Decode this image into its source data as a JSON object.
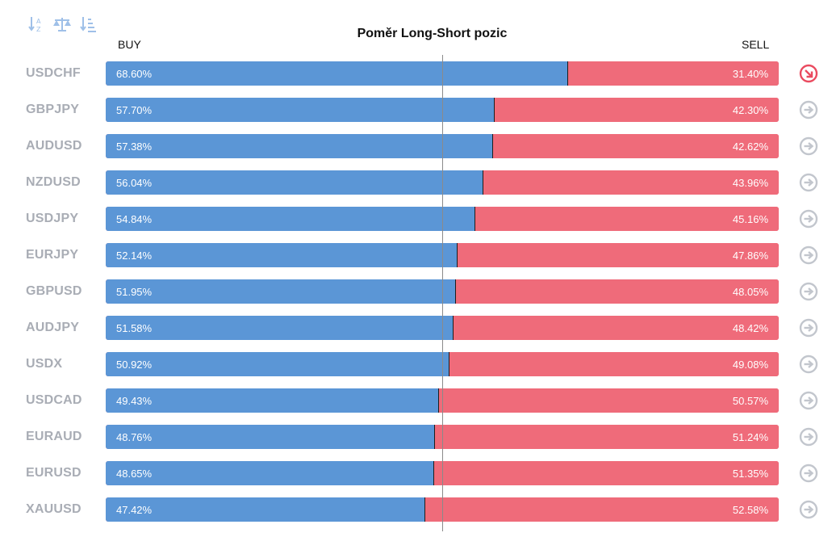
{
  "chart_data": {
    "type": "bar",
    "title": "Poměr Long-Short pozic",
    "left_label": "BUY",
    "right_label": "SELL",
    "colors": {
      "buy": "#5b96d6",
      "sell": "#ef6b7a",
      "pair": "#a9adb5",
      "active_arrow": "#ea4b60",
      "arrow": "#c2c6cd"
    },
    "rows": [
      {
        "pair": "USDCHF",
        "buy": 68.6,
        "sell": 31.4,
        "buy_text": "68.60%",
        "sell_text": "31.40%",
        "arrow": "active"
      },
      {
        "pair": "GBPJPY",
        "buy": 57.7,
        "sell": 42.3,
        "buy_text": "57.70%",
        "sell_text": "42.30%",
        "arrow": "neutral"
      },
      {
        "pair": "AUDUSD",
        "buy": 57.38,
        "sell": 42.62,
        "buy_text": "57.38%",
        "sell_text": "42.62%",
        "arrow": "neutral"
      },
      {
        "pair": "NZDUSD",
        "buy": 56.04,
        "sell": 43.96,
        "buy_text": "56.04%",
        "sell_text": "43.96%",
        "arrow": "neutral"
      },
      {
        "pair": "USDJPY",
        "buy": 54.84,
        "sell": 45.16,
        "buy_text": "54.84%",
        "sell_text": "45.16%",
        "arrow": "neutral"
      },
      {
        "pair": "EURJPY",
        "buy": 52.14,
        "sell": 47.86,
        "buy_text": "52.14%",
        "sell_text": "47.86%",
        "arrow": "neutral"
      },
      {
        "pair": "GBPUSD",
        "buy": 51.95,
        "sell": 48.05,
        "buy_text": "51.95%",
        "sell_text": "48.05%",
        "arrow": "neutral"
      },
      {
        "pair": "AUDJPY",
        "buy": 51.58,
        "sell": 48.42,
        "buy_text": "51.58%",
        "sell_text": "48.42%",
        "arrow": "neutral"
      },
      {
        "pair": "USDX",
        "buy": 50.92,
        "sell": 49.08,
        "buy_text": "50.92%",
        "sell_text": "49.08%",
        "arrow": "neutral"
      },
      {
        "pair": "USDCAD",
        "buy": 49.43,
        "sell": 50.57,
        "buy_text": "49.43%",
        "sell_text": "50.57%",
        "arrow": "neutral"
      },
      {
        "pair": "EURAUD",
        "buy": 48.76,
        "sell": 51.24,
        "buy_text": "48.76%",
        "sell_text": "51.24%",
        "arrow": "neutral"
      },
      {
        "pair": "EURUSD",
        "buy": 48.65,
        "sell": 51.35,
        "buy_text": "48.65%",
        "sell_text": "51.35%",
        "arrow": "neutral"
      },
      {
        "pair": "XAUUSD",
        "buy": 47.42,
        "sell": 52.58,
        "buy_text": "47.42%",
        "sell_text": "52.58%",
        "arrow": "neutral"
      }
    ]
  },
  "toolbar": {
    "icons": [
      "sort-alpha-icon",
      "balance-scale-icon",
      "sort-amount-icon"
    ],
    "icon_color": "#9fc0e8"
  }
}
